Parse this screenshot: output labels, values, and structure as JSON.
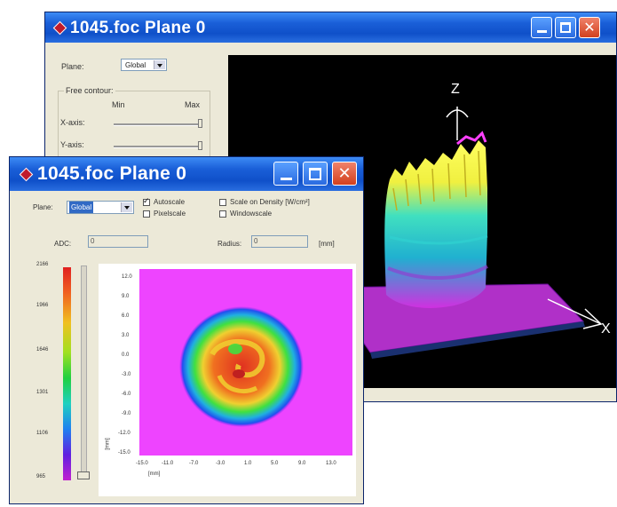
{
  "back_window": {
    "title": "1045.foc Plane 0",
    "plane_label": "Plane:",
    "plane_value": "Global",
    "fixed_contour_label": "Free contour:",
    "min_label": "Min",
    "max_label": "Max",
    "x_axis_label": "X-axis:",
    "y_axis_label": "Y-axis:",
    "axis_z_label": "Z",
    "axis_x_label": "X"
  },
  "front_window": {
    "title": "1045.foc Plane 0",
    "plane_label": "Plane:",
    "plane_value": "Global",
    "autoscale_label": "Autoscale",
    "autoscale_checked": true,
    "pixelscale_label": "Pixelscale",
    "pixelscale_checked": false,
    "scale_density_label": "Scale on Density [W/cm²]",
    "scale_density_checked": false,
    "windowscale_label": "Windowscale",
    "windowscale_checked": false,
    "adc_label": "ADC:",
    "adc_value": "0",
    "radius_label": "Radius:",
    "radius_value": "0",
    "radius_unit": "[mm]",
    "colorbar_ticks": [
      "2166",
      "1966",
      "1646",
      "1301",
      "1106",
      "965"
    ],
    "y_ticks": [
      "12.0",
      "9.0",
      "6.0",
      "3.0",
      "0.0",
      "-3.0",
      "-6.0",
      "-9.0",
      "-12.0",
      "-15.0"
    ],
    "x_ticks": [
      "-15.0",
      "-11.0",
      "-7.0",
      "-3.0",
      "1.0",
      "5.0",
      "9.0",
      "13.0"
    ],
    "x_axis_unit": "[mm]",
    "y_axis_unit": "[mm]"
  },
  "colors": {
    "titlebar": "#1a5fd8",
    "window_face": "#ece9d8",
    "plot_background": "#ee44ff",
    "plot3d_background": "#000000"
  }
}
